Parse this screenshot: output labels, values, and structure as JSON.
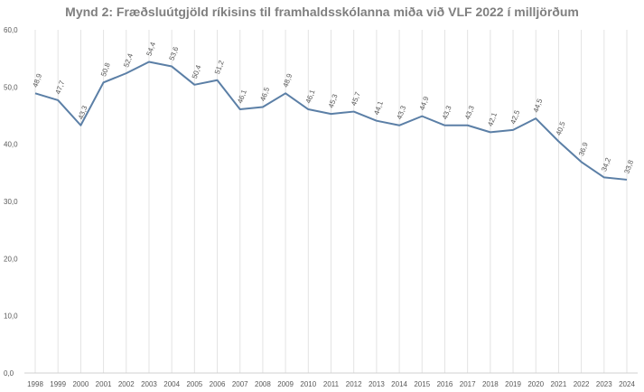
{
  "chart_data": {
    "type": "line",
    "title": "Mynd 2: Fræðsluútgjöld ríkisins til framhaldsskólanna miða við VLF 2022 í milljörðum",
    "xlabel": "",
    "ylabel": "",
    "ylim": [
      0,
      60
    ],
    "yticks": [
      "0,0",
      "10,0",
      "20,0",
      "30,0",
      "40,0",
      "50,0",
      "60,0"
    ],
    "grid": "vertical",
    "legend": "none",
    "categories": [
      "1998",
      "1999",
      "2000",
      "2001",
      "2002",
      "2003",
      "2004",
      "2005",
      "2006",
      "2007",
      "2008",
      "2009",
      "2010",
      "2011",
      "2012",
      "2013",
      "2014",
      "2015",
      "2016",
      "2017",
      "2018",
      "2019",
      "2020",
      "2021",
      "2022",
      "2023",
      "2024"
    ],
    "series": [
      {
        "name": "Fræðsluútgjöld",
        "color": "#5b7fa6",
        "values": [
          48.9,
          47.7,
          43.3,
          50.8,
          52.4,
          54.4,
          53.6,
          50.4,
          51.2,
          46.1,
          46.5,
          48.9,
          46.1,
          45.3,
          45.7,
          44.1,
          43.3,
          44.9,
          43.3,
          43.3,
          42.1,
          42.5,
          44.5,
          40.5,
          36.9,
          34.2,
          33.8
        ]
      }
    ]
  }
}
